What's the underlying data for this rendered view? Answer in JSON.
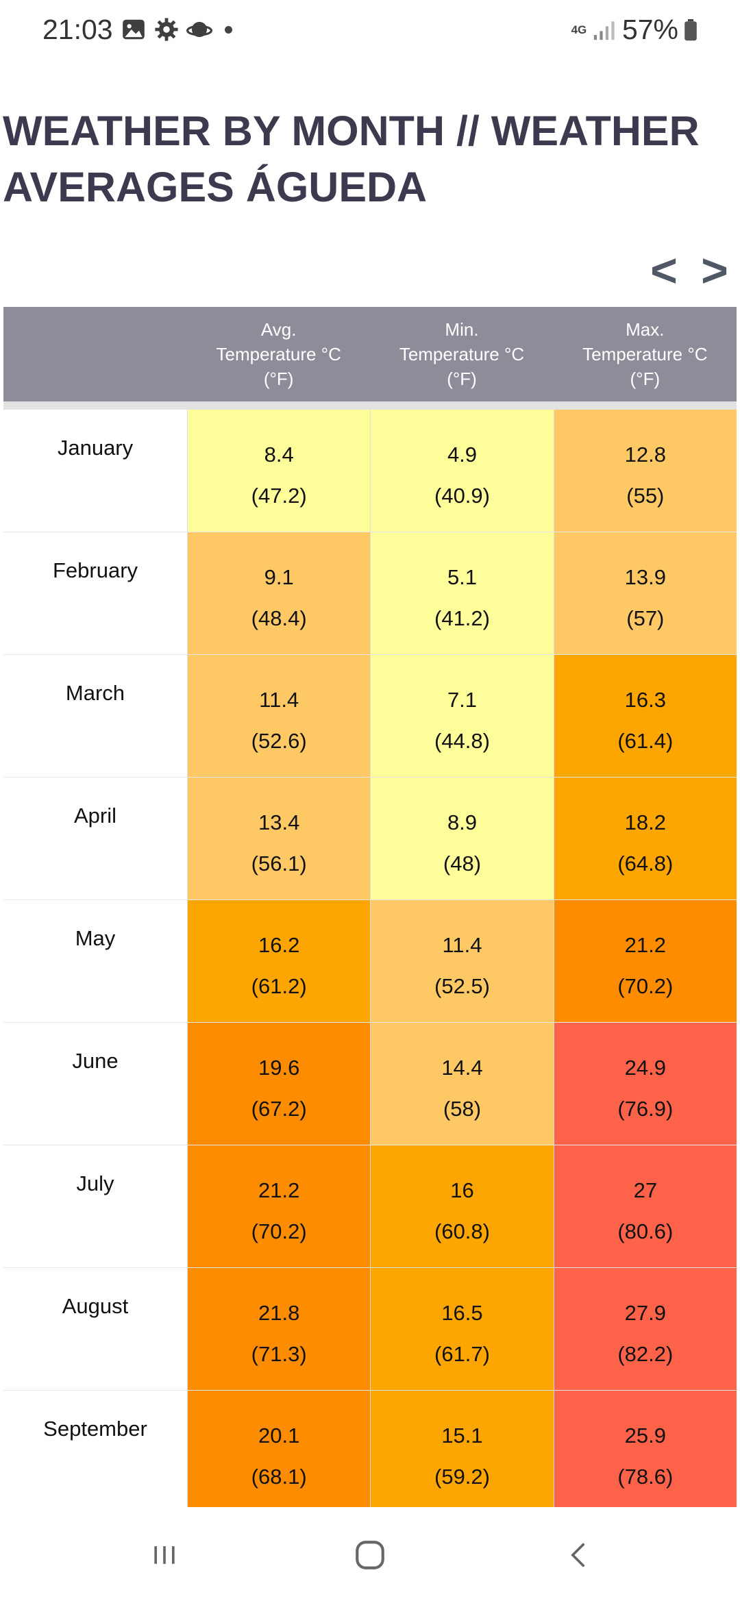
{
  "status_bar": {
    "time": "21:03",
    "network": "4G",
    "battery_percent": "57%"
  },
  "header": {
    "title": "WEATHER BY MONTH // WEATHER AVERAGES ÁGUEDA",
    "prev_label": "<",
    "next_label": ">"
  },
  "table": {
    "headers": [
      "",
      "Avg.\nTemperature °C\n(°F)",
      "Min.\nTemperature °C\n(°F)",
      "Max.\nTemperature °C\n(°F)"
    ],
    "rows": [
      {
        "month": "January",
        "avg": [
          "8.4",
          "(47.2)"
        ],
        "min": [
          "4.9",
          "(40.9)"
        ],
        "max": [
          "12.8",
          "(55)"
        ],
        "colors": [
          "#fdfd9a",
          "#fdfd9a",
          "#fec965"
        ]
      },
      {
        "month": "February",
        "avg": [
          "9.1",
          "(48.4)"
        ],
        "min": [
          "5.1",
          "(41.2)"
        ],
        "max": [
          "13.9",
          "(57)"
        ],
        "colors": [
          "#fec965",
          "#fdfd9a",
          "#fec965"
        ]
      },
      {
        "month": "March",
        "avg": [
          "11.4",
          "(52.6)"
        ],
        "min": [
          "7.1",
          "(44.8)"
        ],
        "max": [
          "16.3",
          "(61.4)"
        ],
        "colors": [
          "#fec965",
          "#fdfd9a",
          "#fda500"
        ]
      },
      {
        "month": "April",
        "avg": [
          "13.4",
          "(56.1)"
        ],
        "min": [
          "8.9",
          "(48)"
        ],
        "max": [
          "18.2",
          "(64.8)"
        ],
        "colors": [
          "#fec965",
          "#fdfd9a",
          "#fda500"
        ]
      },
      {
        "month": "May",
        "avg": [
          "16.2",
          "(61.2)"
        ],
        "min": [
          "11.4",
          "(52.5)"
        ],
        "max": [
          "21.2",
          "(70.2)"
        ],
        "colors": [
          "#fda500",
          "#fec965",
          "#fe8c00"
        ]
      },
      {
        "month": "June",
        "avg": [
          "19.6",
          "(67.2)"
        ],
        "min": [
          "14.4",
          "(58)"
        ],
        "max": [
          "24.9",
          "(76.9)"
        ],
        "colors": [
          "#fe8c00",
          "#fec965",
          "#fe634a"
        ]
      },
      {
        "month": "July",
        "avg": [
          "21.2",
          "(70.2)"
        ],
        "min": [
          "16",
          "(60.8)"
        ],
        "max": [
          "27",
          "(80.6)"
        ],
        "colors": [
          "#fe8c00",
          "#fda500",
          "#fe634a"
        ]
      },
      {
        "month": "August",
        "avg": [
          "21.8",
          "(71.3)"
        ],
        "min": [
          "16.5",
          "(61.7)"
        ],
        "max": [
          "27.9",
          "(82.2)"
        ],
        "colors": [
          "#fe8c00",
          "#fda500",
          "#fe634a"
        ]
      },
      {
        "month": "September",
        "avg": [
          "20.1",
          "(68.1)"
        ],
        "min": [
          "15.1",
          "(59.2)"
        ],
        "max": [
          "25.9",
          "(78.6)"
        ],
        "colors": [
          "#fe8c00",
          "#fda500",
          "#fe634a"
        ]
      }
    ]
  },
  "nav_bar": {
    "icons": [
      "recents-icon",
      "home-icon",
      "back-icon"
    ]
  }
}
